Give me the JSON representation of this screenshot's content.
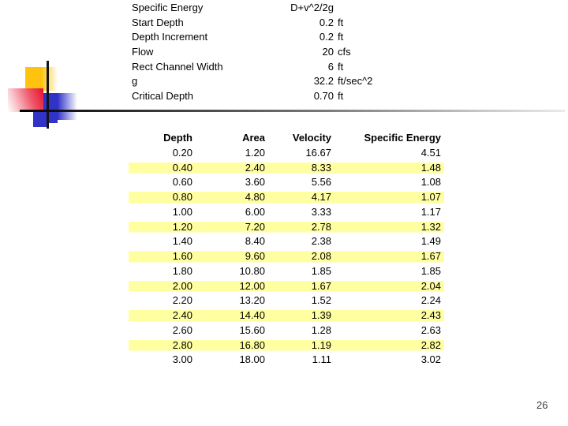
{
  "page_number": "26",
  "parameters": {
    "rows": [
      {
        "label": "Specific Energy",
        "value": "D+v^2/2g",
        "unit": ""
      },
      {
        "label": "Start Depth",
        "value": "0.2",
        "unit": "ft"
      },
      {
        "label": "Depth Increment",
        "value": "0.2",
        "unit": "ft"
      },
      {
        "label": "Flow",
        "value": "20",
        "unit": "cfs"
      },
      {
        "label": "Rect Channel Width",
        "value": "6",
        "unit": "ft"
      },
      {
        "label": "g",
        "value": "32.2",
        "unit": "ft/sec^2"
      },
      {
        "label": "Critical Depth",
        "value": "0.70",
        "unit": "ft"
      }
    ]
  },
  "chart_data": {
    "type": "table",
    "columns": [
      "Depth",
      "Area",
      "Velocity",
      "Specific Energy"
    ],
    "rows": [
      [
        "0.20",
        "1.20",
        "16.67",
        "4.51"
      ],
      [
        "0.40",
        "2.40",
        "8.33",
        "1.48"
      ],
      [
        "0.60",
        "3.60",
        "5.56",
        "1.08"
      ],
      [
        "0.80",
        "4.80",
        "4.17",
        "1.07"
      ],
      [
        "1.00",
        "6.00",
        "3.33",
        "1.17"
      ],
      [
        "1.20",
        "7.20",
        "2.78",
        "1.32"
      ],
      [
        "1.40",
        "8.40",
        "2.38",
        "1.49"
      ],
      [
        "1.60",
        "9.60",
        "2.08",
        "1.67"
      ],
      [
        "1.80",
        "10.80",
        "1.85",
        "1.85"
      ],
      [
        "2.00",
        "12.00",
        "1.67",
        "2.04"
      ],
      [
        "2.20",
        "13.20",
        "1.52",
        "2.24"
      ],
      [
        "2.40",
        "14.40",
        "1.39",
        "2.43"
      ],
      [
        "2.60",
        "15.60",
        "1.28",
        "2.63"
      ],
      [
        "2.80",
        "16.80",
        "1.19",
        "2.82"
      ],
      [
        "3.00",
        "18.00",
        "1.11",
        "3.02"
      ]
    ],
    "highlight_row_color": "#ffffa2",
    "layout": "alternate rows highlighted starting with second data row"
  },
  "decor": {
    "yellow_square_color": "#ffc20e",
    "blue_square_color": "#3032c8",
    "red_square_color": "#e8112d",
    "line_color": "#141414"
  }
}
